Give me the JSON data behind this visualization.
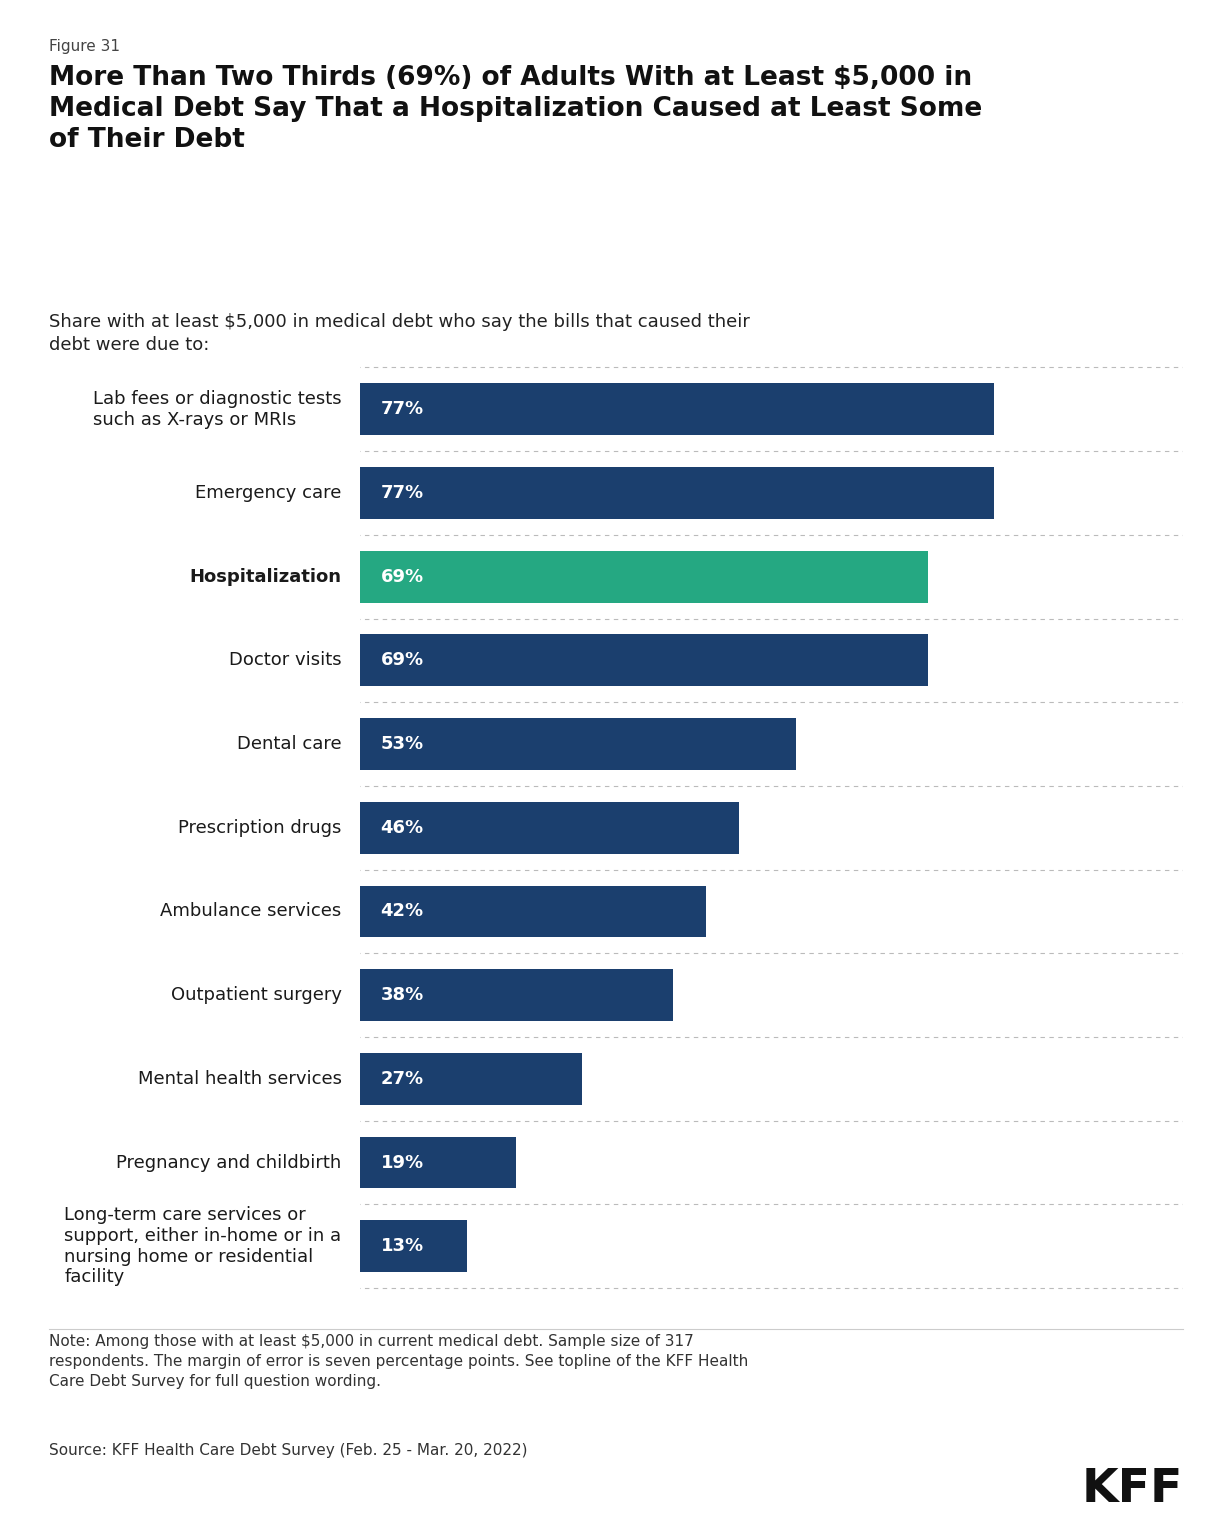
{
  "figure_label": "Figure 31",
  "title": "More Than Two Thirds (69%) of Adults With at Least $5,000 in\nMedical Debt Say That a Hospitalization Caused at Least Some\nof Their Debt",
  "subtitle": "Share with at least $5,000 in medical debt who say the bills that caused their\ndebt were due to:",
  "categories": [
    "Lab fees or diagnostic tests\nsuch as X-rays or MRIs",
    "Emergency care",
    "Hospitalization",
    "Doctor visits",
    "Dental care",
    "Prescription drugs",
    "Ambulance services",
    "Outpatient surgery",
    "Mental health services",
    "Pregnancy and childbirth",
    "Long-term care services or\nsupport, either in-home or in a\nnursing home or residential\nfacility"
  ],
  "values": [
    77,
    77,
    69,
    69,
    53,
    46,
    42,
    38,
    27,
    19,
    13
  ],
  "bar_colors": [
    "#1b3f6e",
    "#1b3f6e",
    "#25a882",
    "#1b3f6e",
    "#1b3f6e",
    "#1b3f6e",
    "#1b3f6e",
    "#1b3f6e",
    "#1b3f6e",
    "#1b3f6e",
    "#1b3f6e"
  ],
  "bold_categories": [
    2
  ],
  "bar_label_color": "#ffffff",
  "note_text": "Note: Among those with at least $5,000 in current medical debt. Sample size of 317\nrespondents. The margin of error is seven percentage points. See topline of the KFF Health\nCare Debt Survey for full question wording.",
  "source_text": "Source: KFF Health Care Debt Survey (Feb. 25 - Mar. 20, 2022)",
  "background_color": "#ffffff",
  "fig_width": 12.2,
  "fig_height": 15.4
}
